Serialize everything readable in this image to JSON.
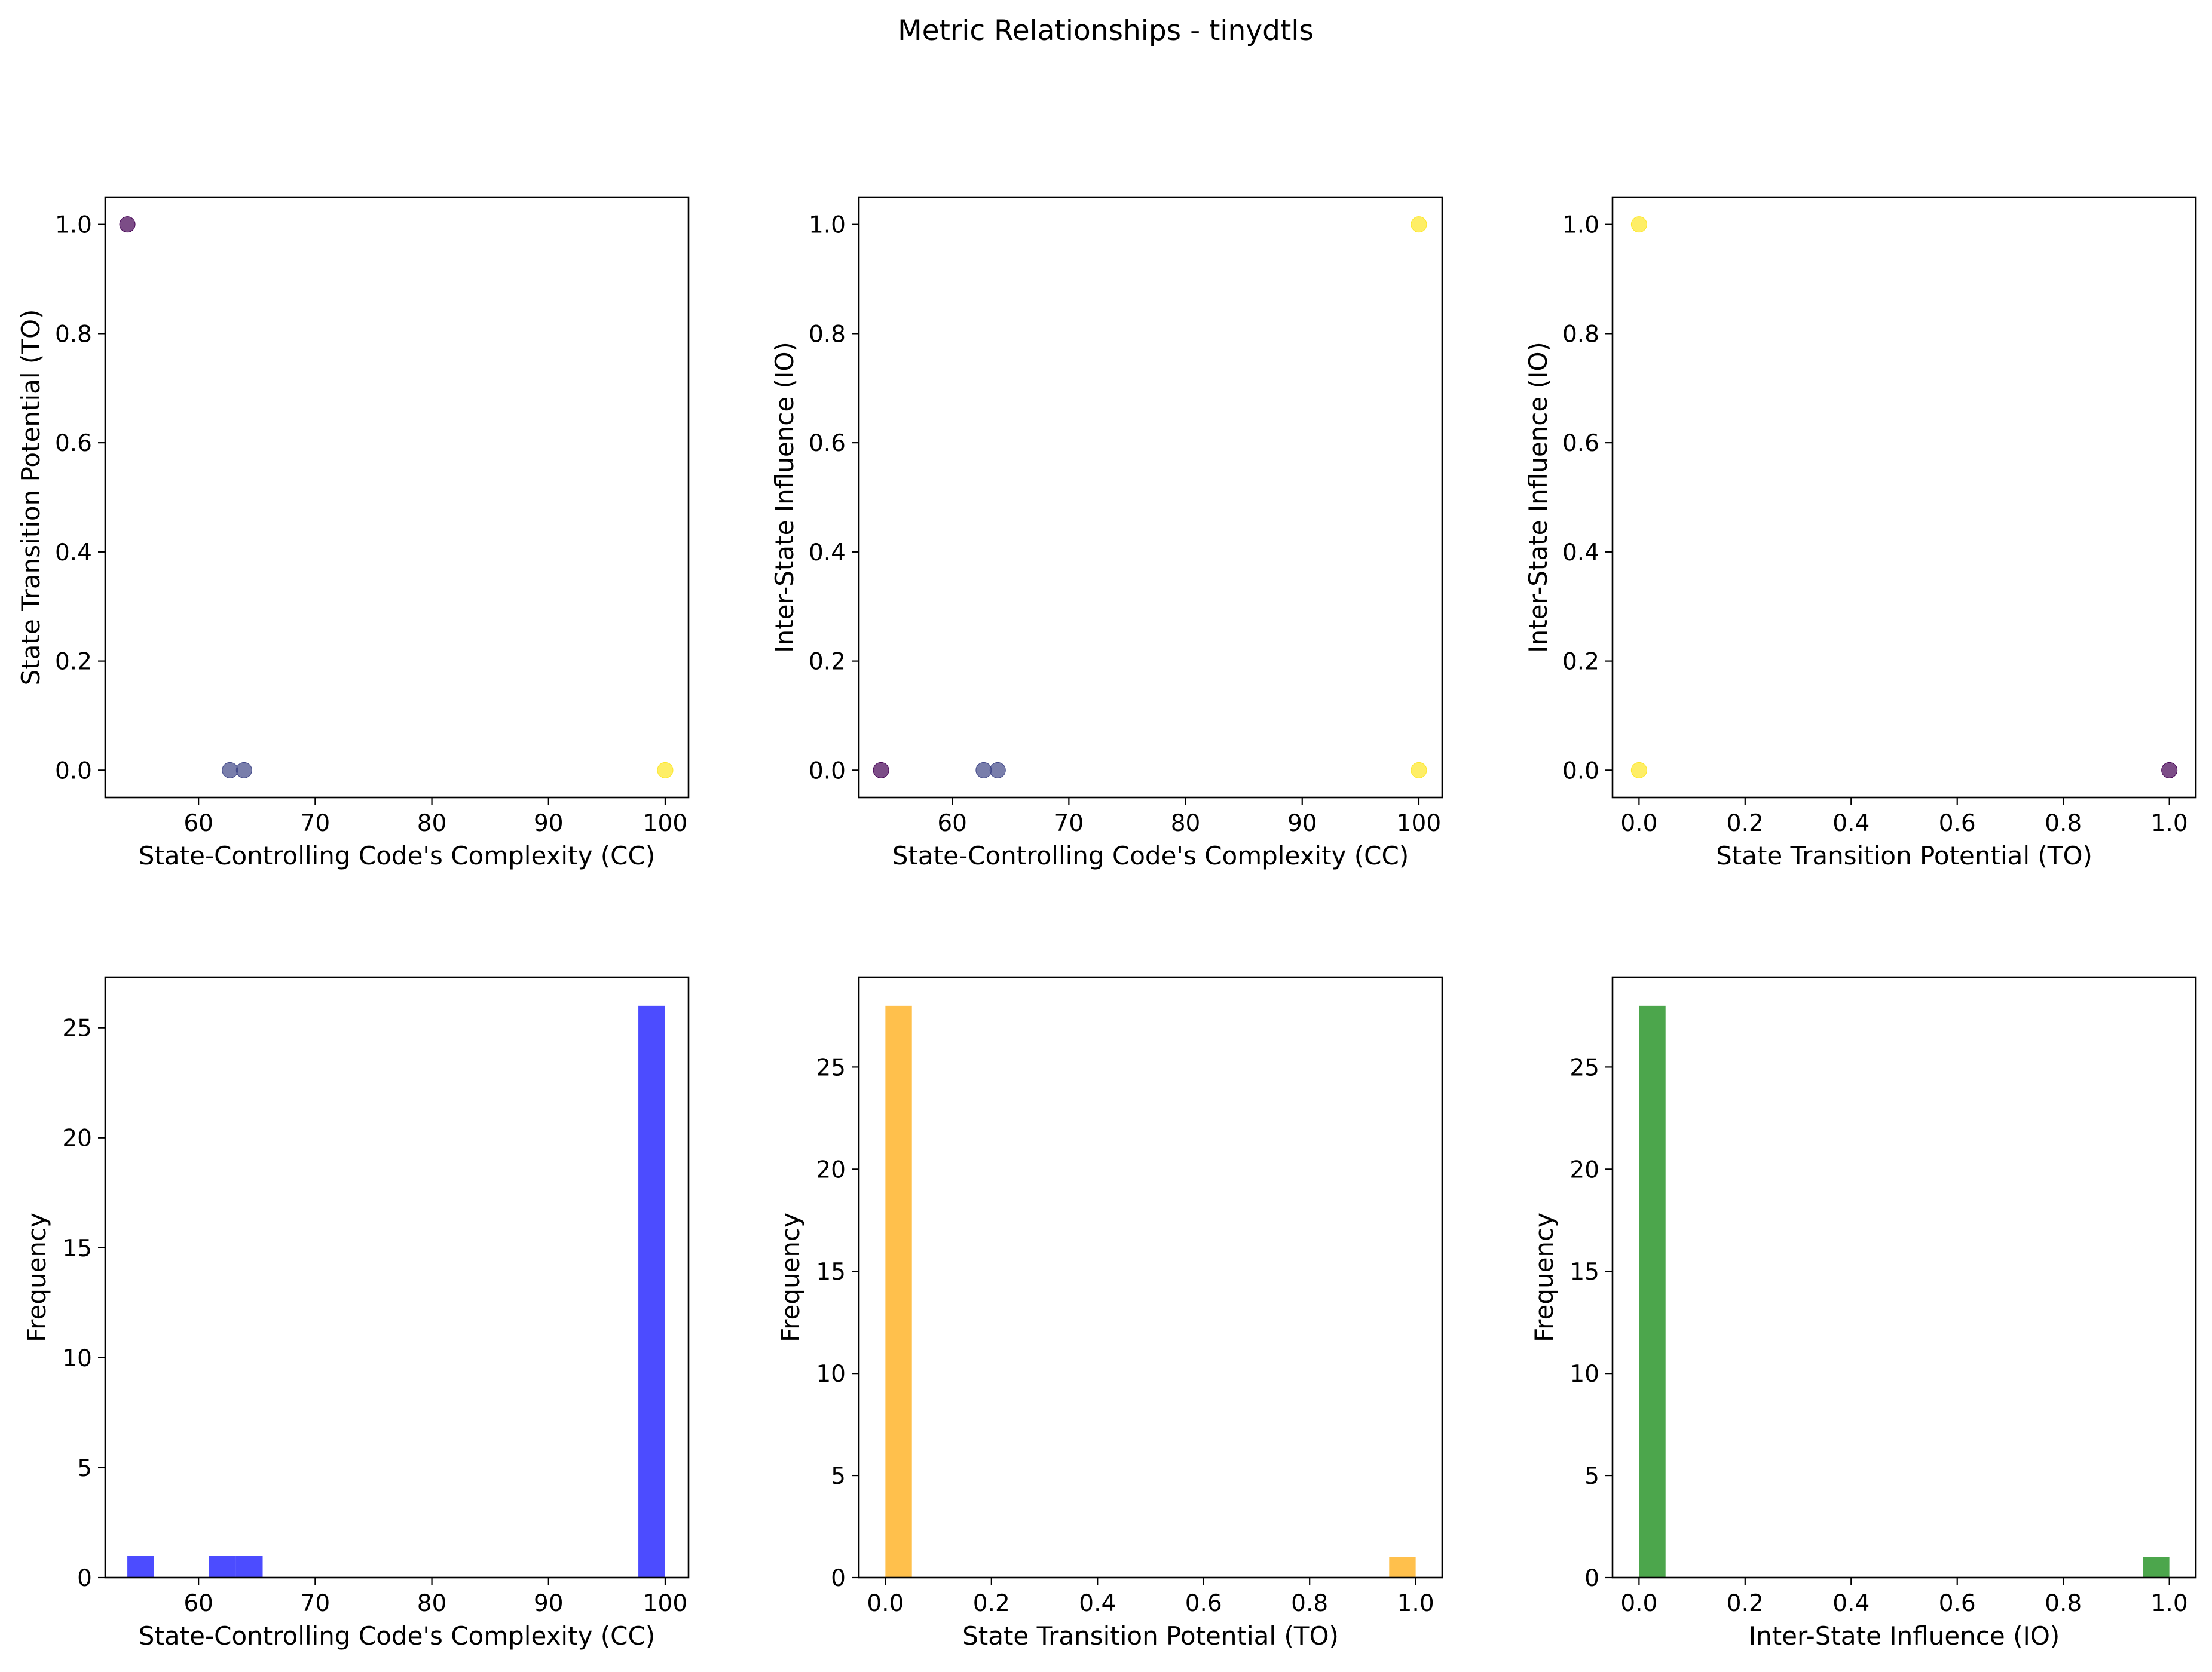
{
  "title": "Metric Relationships - tinydtls",
  "chart_data": [
    {
      "type": "scatter",
      "title": "",
      "xlabel": "State-Controlling Code's Complexity (CC)",
      "ylabel": "State Transition Potential (TO)",
      "xlim": [
        52,
        102
      ],
      "ylim": [
        -0.05,
        1.05
      ],
      "xticks": [
        60,
        70,
        80,
        90,
        100
      ],
      "yticks": [
        0.0,
        0.2,
        0.4,
        0.6,
        0.8,
        1.0
      ],
      "points": [
        {
          "x": 53.9,
          "y": 1.0,
          "color": "#440154"
        },
        {
          "x": 62.7,
          "y": 0.0,
          "color": "#404788"
        },
        {
          "x": 63.9,
          "y": 0.0,
          "color": "#404788"
        },
        {
          "x": 100,
          "y": 0.0,
          "color": "#fde725"
        }
      ]
    },
    {
      "type": "scatter",
      "title": "",
      "xlabel": "State-Controlling Code's Complexity (CC)",
      "ylabel": "Inter-State Influence (IO)",
      "xlim": [
        52,
        102
      ],
      "ylim": [
        -0.05,
        1.05
      ],
      "xticks": [
        60,
        70,
        80,
        90,
        100
      ],
      "yticks": [
        0.0,
        0.2,
        0.4,
        0.6,
        0.8,
        1.0
      ],
      "points": [
        {
          "x": 53.9,
          "y": 0.0,
          "color": "#440154"
        },
        {
          "x": 62.7,
          "y": 0.0,
          "color": "#404788"
        },
        {
          "x": 63.9,
          "y": 0.0,
          "color": "#404788"
        },
        {
          "x": 100,
          "y": 0.0,
          "color": "#fde725"
        },
        {
          "x": 100,
          "y": 1.0,
          "color": "#fde725"
        }
      ]
    },
    {
      "type": "scatter",
      "title": "",
      "xlabel": "State Transition Potential (TO)",
      "ylabel": "Inter-State Influence (IO)",
      "xlim": [
        -0.05,
        1.05
      ],
      "ylim": [
        -0.05,
        1.05
      ],
      "xticks": [
        0.0,
        0.2,
        0.4,
        0.6,
        0.8,
        1.0
      ],
      "yticks": [
        0.0,
        0.2,
        0.4,
        0.6,
        0.8,
        1.0
      ],
      "points": [
        {
          "x": 0.0,
          "y": 1.0,
          "color": "#fde725"
        },
        {
          "x": 0.0,
          "y": 0.0,
          "color": "#fde725"
        },
        {
          "x": 1.0,
          "y": 0.0,
          "color": "#440154"
        }
      ]
    },
    {
      "type": "bar",
      "title": "",
      "xlabel": "State-Controlling Code's Complexity (CC)",
      "ylabel": "Frequency",
      "xlim": [
        52,
        102
      ],
      "ylim": [
        0,
        27.3
      ],
      "xticks": [
        60,
        70,
        80,
        90,
        100
      ],
      "yticks": [
        0,
        5,
        10,
        15,
        20,
        25
      ],
      "color": "#0000ff",
      "bins": [
        {
          "x0": 53.9,
          "x1": 56.2,
          "count": 1
        },
        {
          "x0": 60.9,
          "x1": 63.2,
          "count": 1
        },
        {
          "x0": 63.2,
          "x1": 65.5,
          "count": 1
        },
        {
          "x0": 97.7,
          "x1": 100.0,
          "count": 26
        }
      ]
    },
    {
      "type": "bar",
      "title": "",
      "xlabel": "State Transition Potential (TO)",
      "ylabel": "Frequency",
      "xlim": [
        -0.05,
        1.05
      ],
      "ylim": [
        0,
        29.4
      ],
      "xticks": [
        0.0,
        0.2,
        0.4,
        0.6,
        0.8,
        1.0
      ],
      "yticks": [
        0,
        5,
        10,
        15,
        20,
        25
      ],
      "color": "#ffa500",
      "bins": [
        {
          "x0": 0.0,
          "x1": 0.05,
          "count": 28
        },
        {
          "x0": 0.95,
          "x1": 1.0,
          "count": 1
        }
      ]
    },
    {
      "type": "bar",
      "title": "",
      "xlabel": "Inter-State Influence (IO)",
      "ylabel": "Frequency",
      "xlim": [
        -0.05,
        1.05
      ],
      "ylim": [
        0,
        29.4
      ],
      "xticks": [
        0.0,
        0.2,
        0.4,
        0.6,
        0.8,
        1.0
      ],
      "yticks": [
        0,
        5,
        10,
        15,
        20,
        25
      ],
      "color": "#008000",
      "bins": [
        {
          "x0": 0.0,
          "x1": 0.05,
          "count": 28
        },
        {
          "x0": 0.95,
          "x1": 1.0,
          "count": 1
        }
      ]
    }
  ]
}
